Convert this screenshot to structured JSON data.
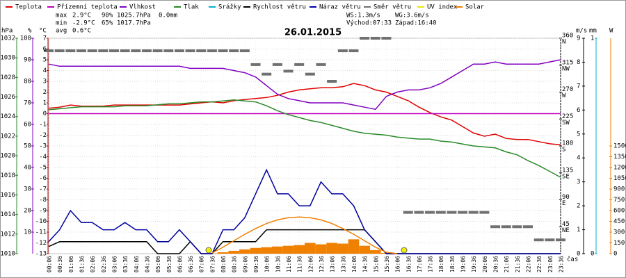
{
  "chart_data": {
    "type": "line",
    "title": "26.01.2015",
    "x_label": "čas",
    "categories": [
      "00:06",
      "00:36",
      "01:06",
      "01:36",
      "02:06",
      "02:36",
      "03:06",
      "03:36",
      "04:06",
      "04:36",
      "05:06",
      "05:36",
      "06:06",
      "06:36",
      "07:06",
      "07:36",
      "08:06",
      "08:36",
      "09:06",
      "09:36",
      "10:06",
      "10:36",
      "11:06",
      "11:36",
      "12:06",
      "12:36",
      "13:06",
      "13:36",
      "14:06",
      "14:36",
      "15:06",
      "15:36",
      "16:06",
      "16:36",
      "17:06",
      "17:36",
      "18:06",
      "18:36",
      "19:06",
      "19:36",
      "20:06",
      "20:36",
      "21:06",
      "21:36",
      "22:06",
      "22:36",
      "23:06",
      "23:36"
    ],
    "stats": [
      {
        "label": "max",
        "values": [
          "2.9°C",
          "90%",
          "1025.7hPa",
          "0.0mm"
        ]
      },
      {
        "label": "min",
        "values": [
          "-2.9°C",
          "65%",
          "1017.7hPa"
        ]
      },
      {
        "label": "avg",
        "values": [
          "0.6°C"
        ]
      }
    ],
    "info": [
      "WS:1.3m/s",
      "WG:3.6m/s",
      "Východ:07:33",
      "Západ:16:40"
    ],
    "axes": [
      {
        "unit": "hPa",
        "color": "#2a8a2a",
        "ylim": [
          1010,
          1032
        ],
        "yticks": [
          1010,
          1012,
          1014,
          1016,
          1018,
          1020,
          1022,
          1024,
          1026,
          1028,
          1030,
          1032
        ]
      },
      {
        "unit": "%",
        "color": "#8000c0",
        "ylim": [
          0,
          100
        ],
        "yticks": [
          10,
          20,
          30,
          40,
          50,
          60,
          70,
          80,
          90,
          100
        ]
      },
      {
        "unit": "°C",
        "color": "#c00000",
        "ylim": [
          -13,
          7
        ],
        "yticks": [
          -13,
          -12,
          -11,
          -10,
          -9,
          -8,
          -7,
          -6,
          -5,
          -4,
          -3,
          -2,
          -1,
          0,
          1,
          2,
          3,
          4,
          5,
          6,
          7
        ],
        "grid": true
      },
      {
        "color": "#000000",
        "ylim": [
          0,
          360
        ],
        "yticks": [
          45,
          90,
          135,
          180,
          225,
          270,
          315,
          360
        ],
        "tick_names": [
          "NE",
          "E",
          "SE",
          "S",
          "SW",
          "W",
          "NW",
          "N"
        ]
      },
      {
        "unit": "m/s",
        "color": "#000000",
        "ylim": [
          0,
          9
        ],
        "yticks": [
          0,
          1,
          2,
          3,
          4,
          5,
          6,
          7,
          8,
          9
        ]
      },
      {
        "unit": "mm",
        "color": "#00b0d0",
        "ylim": [
          0,
          1
        ],
        "yticks": [
          0,
          1
        ]
      },
      {
        "unit": "W",
        "color": "#f08000",
        "ylim": [
          0,
          3000
        ],
        "yticks": [
          0,
          150,
          300,
          450,
          600,
          750,
          900,
          1050,
          1200,
          1350,
          1500
        ]
      }
    ],
    "series": [
      {
        "name": "Teplota",
        "color": "#e00000",
        "axis": 2,
        "style": "line",
        "values": [
          0.5,
          0.6,
          0.8,
          0.7,
          0.7,
          0.7,
          0.8,
          0.8,
          0.8,
          0.8,
          0.8,
          0.8,
          0.8,
          0.9,
          1.0,
          1.1,
          1.0,
          1.2,
          1.3,
          1.4,
          1.5,
          1.7,
          2.0,
          2.2,
          2.3,
          2.4,
          2.4,
          2.5,
          2.8,
          2.6,
          2.2,
          2.0,
          1.6,
          1.2,
          0.6,
          0.1,
          -0.3,
          -0.6,
          -1.2,
          -1.8,
          -2.1,
          -1.9,
          -2.3,
          -2.4,
          -2.4,
          -2.6,
          -2.8,
          -2.9
        ]
      },
      {
        "name": "Přízemní teplota",
        "color": "#c000c0",
        "axis": 2,
        "style": "line",
        "values": [
          0,
          0,
          0,
          0,
          0,
          0,
          0,
          0,
          0,
          0,
          0,
          0,
          0,
          0,
          0,
          0,
          0,
          0,
          0,
          0,
          0,
          0,
          0,
          0,
          0,
          0,
          0,
          0,
          0,
          0,
          0,
          0,
          0,
          0,
          0,
          0,
          0,
          0,
          0,
          0,
          0,
          0,
          0,
          0,
          0,
          0,
          0,
          0
        ]
      },
      {
        "name": "Vlhkost",
        "color": "#8000c0",
        "axis": 1,
        "style": "line",
        "values": [
          88,
          87,
          87,
          87,
          87,
          87,
          87,
          87,
          87,
          87,
          87,
          87,
          87,
          86,
          86,
          86,
          86,
          85,
          84,
          82,
          78,
          74,
          72,
          71,
          70,
          70,
          70,
          70,
          69,
          68,
          67,
          73,
          75,
          76,
          76,
          77,
          79,
          82,
          85,
          88,
          88,
          89,
          88,
          88,
          88,
          88,
          89,
          90
        ]
      },
      {
        "name": "Tlak",
        "color": "#2a8a2a",
        "axis": 0,
        "style": "line",
        "values": [
          1024.7,
          1024.8,
          1024.9,
          1025.0,
          1025.0,
          1025.0,
          1025.0,
          1025.1,
          1025.1,
          1025.1,
          1025.2,
          1025.3,
          1025.3,
          1025.4,
          1025.5,
          1025.5,
          1025.6,
          1025.7,
          1025.6,
          1025.5,
          1025.1,
          1024.6,
          1024.2,
          1023.9,
          1023.6,
          1023.4,
          1023.1,
          1022.8,
          1022.5,
          1022.3,
          1022.2,
          1022.1,
          1021.9,
          1021.8,
          1021.7,
          1021.7,
          1021.5,
          1021.4,
          1021.2,
          1021.0,
          1020.9,
          1020.8,
          1020.4,
          1020.1,
          1019.5,
          1019.0,
          1018.4,
          1017.8
        ]
      },
      {
        "name": "Srážky",
        "color": "#00b0d0",
        "axis": 5,
        "style": "line"
      },
      {
        "name": "Rychlost větru",
        "color": "#000000",
        "axis": 4,
        "style": "line",
        "values": [
          0.3,
          0.5,
          0.5,
          0.5,
          0.5,
          0.5,
          0.5,
          0.5,
          0.5,
          0.5,
          0,
          0,
          0,
          0.5,
          0,
          0,
          0.5,
          0.5,
          0.5,
          0.5,
          1,
          1,
          1,
          1,
          1,
          1,
          1,
          1,
          1,
          1,
          0.5,
          0,
          0,
          0,
          0,
          0,
          0,
          0,
          0,
          0,
          0,
          0,
          0,
          0,
          0,
          0,
          0,
          0
        ]
      },
      {
        "name": "Náraz větru",
        "color": "#0000a0",
        "axis": 4,
        "style": "line",
        "values": [
          0.5,
          1.0,
          1.8,
          1.3,
          1.3,
          1.0,
          1.0,
          1.3,
          1.0,
          1.0,
          0.5,
          0.5,
          1.0,
          0.5,
          0,
          0,
          1.0,
          1.0,
          1.5,
          2.5,
          3.5,
          2.5,
          2.5,
          2.0,
          2.0,
          3.0,
          2.5,
          2.5,
          2.0,
          1.0,
          0.5,
          0,
          0,
          0,
          0,
          0,
          0,
          0,
          0,
          0,
          0,
          0,
          0,
          0,
          0,
          0,
          0,
          0
        ]
      },
      {
        "name": "Směr větru",
        "color": "#707070",
        "axis": 3,
        "style": "dash",
        "values": [
          339,
          339,
          339,
          339,
          339,
          339,
          339,
          339,
          339,
          339,
          339,
          339,
          339,
          339,
          339,
          339,
          339,
          339,
          339,
          316,
          300,
          316,
          305,
          316,
          300,
          316,
          288,
          339,
          339,
          360,
          360,
          360,
          null,
          69,
          69,
          69,
          69,
          69,
          69,
          69,
          69,
          45,
          45,
          45,
          45,
          23,
          23,
          23
        ]
      },
      {
        "name": "UV index",
        "color": "#e8e800",
        "axis": 6,
        "style": "line"
      },
      {
        "name": "Solar",
        "color": "#f08000",
        "axis": 6,
        "style": "bars",
        "values": [
          0,
          0,
          0,
          0,
          0,
          0,
          0,
          0,
          0,
          0,
          0,
          0,
          0,
          0,
          0,
          5,
          20,
          40,
          60,
          80,
          90,
          100,
          110,
          120,
          150,
          130,
          150,
          140,
          200,
          110,
          50,
          10,
          0,
          0,
          0,
          0,
          0,
          0,
          0,
          0,
          0,
          0,
          0,
          0,
          0,
          0,
          0,
          0
        ]
      },
      {
        "color": "#f08000",
        "axis": 6,
        "style": "line",
        "values": [
          null,
          null,
          null,
          null,
          null,
          null,
          null,
          null,
          null,
          null,
          null,
          null,
          null,
          null,
          null,
          10,
          90,
          180,
          270,
          350,
          420,
          470,
          500,
          510,
          500,
          470,
          420,
          350,
          270,
          180,
          90,
          20,
          0,
          null,
          null,
          null,
          null,
          null,
          null,
          null,
          null,
          null,
          null,
          null,
          null,
          null,
          null,
          null
        ]
      }
    ]
  }
}
